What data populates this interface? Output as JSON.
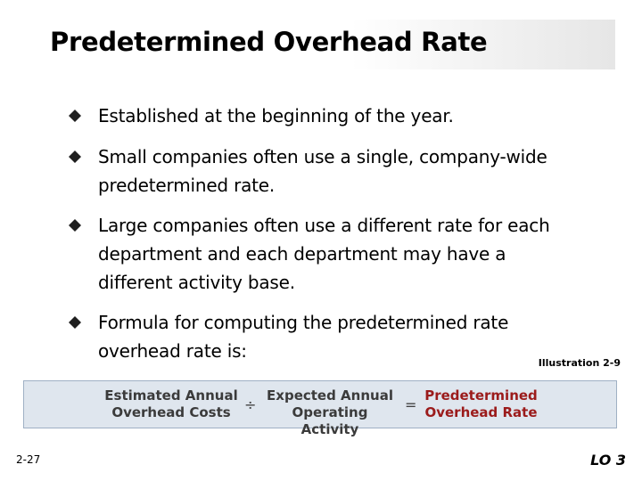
{
  "slide": {
    "title": "Predetermined Overhead Rate",
    "bullets": [
      {
        "line1": "Established at the beginning of the year."
      },
      {
        "line1": "Small companies often use a single, company-wide",
        "line2": "predetermined rate."
      },
      {
        "line1": "Large companies often use a different rate for each",
        "line2": "department and each department may have a",
        "line3": "different activity base."
      },
      {
        "line1": "Formula for computing the predetermined rate",
        "line2": "overhead rate is:"
      }
    ],
    "bullet_icon": "diamond-bullet-icon",
    "illustration_label": "Illustration 2-9",
    "formula": {
      "term1_line1": "Estimated Annual",
      "term1_line2": "Overhead Costs",
      "operator1": "÷",
      "term2_line1": "Expected Annual",
      "term2_line2": "Operating Activity",
      "operator2": "=",
      "result_line1": "Predetermined",
      "result_line2": "Overhead Rate"
    },
    "slide_number": "2-27",
    "learning_objective": "LO 3"
  },
  "colors": {
    "bullet": "#1f1f1f",
    "formula_background": "#dfe6ee",
    "formula_border": "#9fb0c4",
    "result_text": "#9b1b1b"
  }
}
